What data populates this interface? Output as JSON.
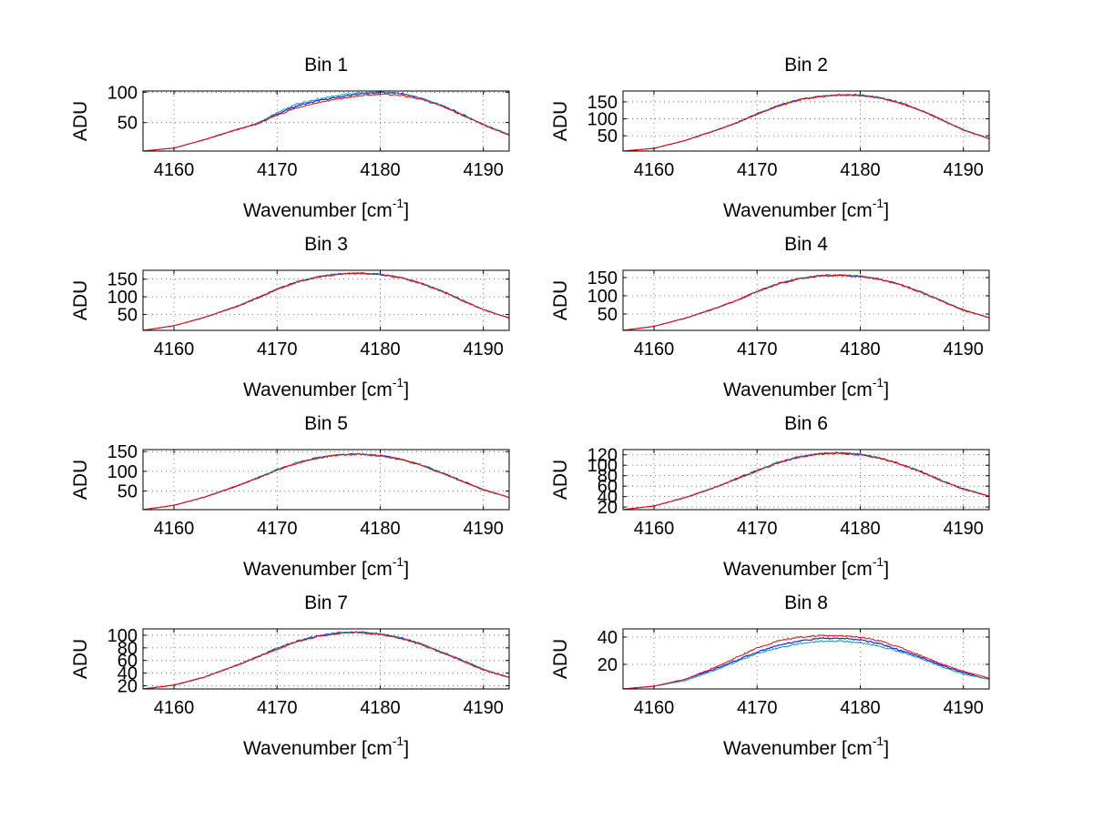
{
  "chart_data": [
    {
      "type": "line",
      "title": "Bin 1",
      "xlabel": "Wavenumber [cm",
      "xlabel_sup": "-1",
      "xlabel_end": "]",
      "ylabel": "ADU",
      "xlim": [
        4157,
        4192.5
      ],
      "ylim": [
        3,
        102
      ],
      "xticks": [
        4160,
        4170,
        4180,
        4190
      ],
      "yticks": [
        50,
        100
      ],
      "x": [
        4157,
        4160,
        4163,
        4166,
        4168,
        4170,
        4172,
        4174,
        4176,
        4178,
        4180,
        4182,
        4184,
        4186,
        4188,
        4190,
        4192.5
      ],
      "series": [
        {
          "color": "#0000ff",
          "values": [
            3,
            8,
            22,
            38,
            48,
            64,
            78,
            86,
            92,
            97,
            100,
            98,
            90,
            78,
            63,
            47,
            30
          ]
        },
        {
          "color": "#00a0a0",
          "values": [
            3,
            8,
            22,
            38,
            48,
            66,
            81,
            89,
            95,
            99,
            100,
            98,
            90,
            78,
            63,
            47,
            30
          ]
        },
        {
          "color": "#ff0000",
          "values": [
            3,
            8,
            22,
            38,
            47,
            62,
            75,
            83,
            89,
            94,
            97,
            95,
            88,
            77,
            62,
            46,
            29
          ]
        }
      ]
    },
    {
      "type": "line",
      "title": "Bin 2",
      "xlabel": "Wavenumber [cm",
      "xlabel_sup": "-1",
      "xlabel_end": "]",
      "ylabel": "ADU",
      "xlim": [
        4157,
        4192.5
      ],
      "ylim": [
        5,
        182
      ],
      "xticks": [
        4160,
        4170,
        4180,
        4190
      ],
      "yticks": [
        50,
        100,
        150
      ],
      "x": [
        4157,
        4160,
        4163,
        4166,
        4168,
        4170,
        4172,
        4174,
        4176,
        4178,
        4180,
        4182,
        4184,
        4186,
        4188,
        4190,
        4192.5
      ],
      "series": [
        {
          "color": "#0000ff",
          "values": [
            5,
            13,
            36,
            66,
            88,
            115,
            138,
            156,
            166,
            171,
            170,
            162,
            146,
            124,
            96,
            68,
            42
          ]
        },
        {
          "color": "#00a0a0",
          "values": [
            5,
            13,
            36,
            66,
            88,
            115,
            138,
            156,
            166,
            171,
            170,
            162,
            146,
            124,
            96,
            68,
            42
          ]
        },
        {
          "color": "#ff0000",
          "values": [
            5,
            13,
            36,
            66,
            88,
            114,
            137,
            155,
            165,
            170,
            169,
            161,
            145,
            123,
            95,
            67,
            41
          ]
        }
      ]
    },
    {
      "type": "line",
      "title": "Bin 3",
      "xlabel": "Wavenumber [cm",
      "xlabel_sup": "-1",
      "xlabel_end": "]",
      "ylabel": "ADU",
      "xlim": [
        4157,
        4192.5
      ],
      "ylim": [
        5,
        175
      ],
      "xticks": [
        4160,
        4170,
        4180,
        4190
      ],
      "yticks": [
        50,
        100,
        150
      ],
      "x": [
        4157,
        4160,
        4163,
        4166,
        4168,
        4170,
        4172,
        4174,
        4176,
        4178,
        4180,
        4182,
        4184,
        4186,
        4188,
        4190,
        4192.5
      ],
      "series": [
        {
          "color": "#0000ff",
          "values": [
            5,
            18,
            42,
            72,
            95,
            122,
            143,
            157,
            165,
            167,
            164,
            155,
            138,
            116,
            90,
            64,
            40
          ]
        },
        {
          "color": "#00a0a0",
          "values": [
            5,
            18,
            42,
            72,
            95,
            122,
            143,
            157,
            165,
            167,
            164,
            155,
            138,
            116,
            90,
            64,
            40
          ]
        },
        {
          "color": "#ff0000",
          "values": [
            5,
            18,
            42,
            72,
            95,
            121,
            142,
            156,
            164,
            166,
            163,
            154,
            137,
            115,
            89,
            63,
            40
          ]
        }
      ]
    },
    {
      "type": "line",
      "title": "Bin 4",
      "xlabel": "Wavenumber [cm",
      "xlabel_sup": "-1",
      "xlabel_end": "]",
      "ylabel": "ADU",
      "xlim": [
        4157,
        4192.5
      ],
      "ylim": [
        5,
        170
      ],
      "xticks": [
        4160,
        4170,
        4180,
        4190
      ],
      "yticks": [
        50,
        100,
        150
      ],
      "x": [
        4157,
        4160,
        4163,
        4166,
        4168,
        4170,
        4172,
        4174,
        4176,
        4178,
        4180,
        4182,
        4184,
        4186,
        4188,
        4190,
        4192.5
      ],
      "series": [
        {
          "color": "#0000ff",
          "values": [
            5,
            16,
            38,
            66,
            87,
            112,
            133,
            147,
            155,
            157,
            154,
            145,
            130,
            109,
            85,
            61,
            40
          ]
        },
        {
          "color": "#00a0a0",
          "values": [
            5,
            16,
            38,
            66,
            87,
            112,
            133,
            147,
            155,
            157,
            154,
            145,
            130,
            109,
            85,
            61,
            40
          ]
        },
        {
          "color": "#ff0000",
          "values": [
            5,
            16,
            38,
            66,
            87,
            111,
            132,
            146,
            154,
            156,
            153,
            144,
            129,
            108,
            84,
            60,
            40
          ]
        }
      ]
    },
    {
      "type": "line",
      "title": "Bin 5",
      "xlabel": "Wavenumber [cm",
      "xlabel_sup": "-1",
      "xlabel_end": "]",
      "ylabel": "ADU",
      "xlim": [
        4157,
        4192.5
      ],
      "ylim": [
        3,
        155
      ],
      "xticks": [
        4160,
        4170,
        4180,
        4190
      ],
      "yticks": [
        50,
        100,
        150
      ],
      "x": [
        4157,
        4160,
        4163,
        4166,
        4168,
        4170,
        4172,
        4174,
        4176,
        4178,
        4180,
        4182,
        4184,
        4186,
        4188,
        4190,
        4192.5
      ],
      "series": [
        {
          "color": "#0000ff",
          "values": [
            3,
            14,
            35,
            62,
            82,
            104,
            122,
            135,
            142,
            144,
            140,
            131,
            116,
            96,
            75,
            54,
            34
          ]
        },
        {
          "color": "#00a0a0",
          "values": [
            3,
            14,
            35,
            62,
            82,
            104,
            122,
            135,
            142,
            144,
            140,
            131,
            116,
            96,
            75,
            54,
            34
          ]
        },
        {
          "color": "#ff0000",
          "values": [
            3,
            14,
            35,
            62,
            82,
            103,
            121,
            134,
            141,
            143,
            139,
            130,
            115,
            95,
            74,
            53,
            34
          ]
        }
      ]
    },
    {
      "type": "line",
      "title": "Bin 6",
      "xlabel": "Wavenumber [cm",
      "xlabel_sup": "-1",
      "xlabel_end": "]",
      "ylabel": "ADU",
      "xlim": [
        4157,
        4192.5
      ],
      "ylim": [
        15,
        130
      ],
      "xticks": [
        4160,
        4170,
        4180,
        4190
      ],
      "yticks": [
        20,
        40,
        60,
        80,
        100,
        120
      ],
      "x": [
        4157,
        4160,
        4163,
        4166,
        4168,
        4170,
        4172,
        4174,
        4176,
        4178,
        4180,
        4182,
        4184,
        4186,
        4188,
        4190,
        4192.5
      ],
      "series": [
        {
          "color": "#0000ff",
          "values": [
            15,
            22,
            38,
            58,
            74,
            90,
            105,
            116,
            122,
            124,
            121,
            114,
            102,
            87,
            70,
            55,
            41
          ]
        },
        {
          "color": "#00a0a0",
          "values": [
            15,
            22,
            38,
            58,
            74,
            90,
            105,
            116,
            122,
            124,
            121,
            114,
            102,
            87,
            70,
            55,
            41
          ]
        },
        {
          "color": "#ff0000",
          "values": [
            15,
            22,
            38,
            58,
            74,
            89,
            104,
            115,
            121,
            123,
            120,
            113,
            101,
            86,
            69,
            54,
            41
          ]
        }
      ]
    },
    {
      "type": "line",
      "title": "Bin 7",
      "xlabel": "Wavenumber [cm",
      "xlabel_sup": "-1",
      "xlabel_end": "]",
      "ylabel": "ADU",
      "xlim": [
        4157,
        4192.5
      ],
      "ylim": [
        15,
        110
      ],
      "xticks": [
        4160,
        4170,
        4180,
        4190
      ],
      "yticks": [
        20,
        40,
        60,
        80,
        100
      ],
      "x": [
        4157,
        4160,
        4163,
        4166,
        4168,
        4170,
        4172,
        4174,
        4176,
        4178,
        4180,
        4182,
        4184,
        4186,
        4188,
        4190,
        4192.5
      ],
      "series": [
        {
          "color": "#0000ff",
          "values": [
            15,
            21,
            34,
            52,
            65,
            79,
            91,
            99,
            104,
            105,
            102,
            96,
            86,
            73,
            60,
            46,
            33
          ]
        },
        {
          "color": "#00a0a0",
          "values": [
            15,
            21,
            34,
            52,
            65,
            79,
            91,
            99,
            104,
            105,
            102,
            96,
            86,
            73,
            60,
            46,
            33
          ]
        },
        {
          "color": "#ff0000",
          "values": [
            15,
            21,
            34,
            52,
            65,
            78,
            90,
            98,
            103,
            104,
            101,
            95,
            85,
            72,
            59,
            45,
            33
          ]
        }
      ]
    },
    {
      "type": "line",
      "title": "Bin 8",
      "xlabel": "Wavenumber [cm",
      "xlabel_sup": "-1",
      "xlabel_end": "]",
      "ylabel": "ADU",
      "xlim": [
        4157,
        4192.5
      ],
      "ylim": [
        2,
        46
      ],
      "xticks": [
        4160,
        4170,
        4180,
        4190
      ],
      "yticks": [
        20,
        40
      ],
      "x": [
        4157,
        4160,
        4163,
        4166,
        4168,
        4170,
        4172,
        4174,
        4176,
        4178,
        4180,
        4182,
        4184,
        4186,
        4188,
        4190,
        4192.5
      ],
      "series": [
        {
          "color": "#0000ff",
          "values": [
            2,
            4,
            9,
            17,
            23,
            29,
            34,
            37,
            39,
            39,
            38,
            35,
            30,
            25,
            19,
            14,
            9
          ]
        },
        {
          "color": "#00a0a0",
          "values": [
            2,
            4,
            8,
            16,
            22,
            28,
            32,
            35,
            37,
            37,
            36,
            33,
            29,
            24,
            18,
            13,
            9
          ]
        },
        {
          "color": "#ff0000",
          "values": [
            2,
            4,
            9,
            18,
            25,
            32,
            37,
            40,
            41,
            41,
            40,
            37,
            32,
            26,
            20,
            15,
            10
          ]
        }
      ]
    }
  ]
}
